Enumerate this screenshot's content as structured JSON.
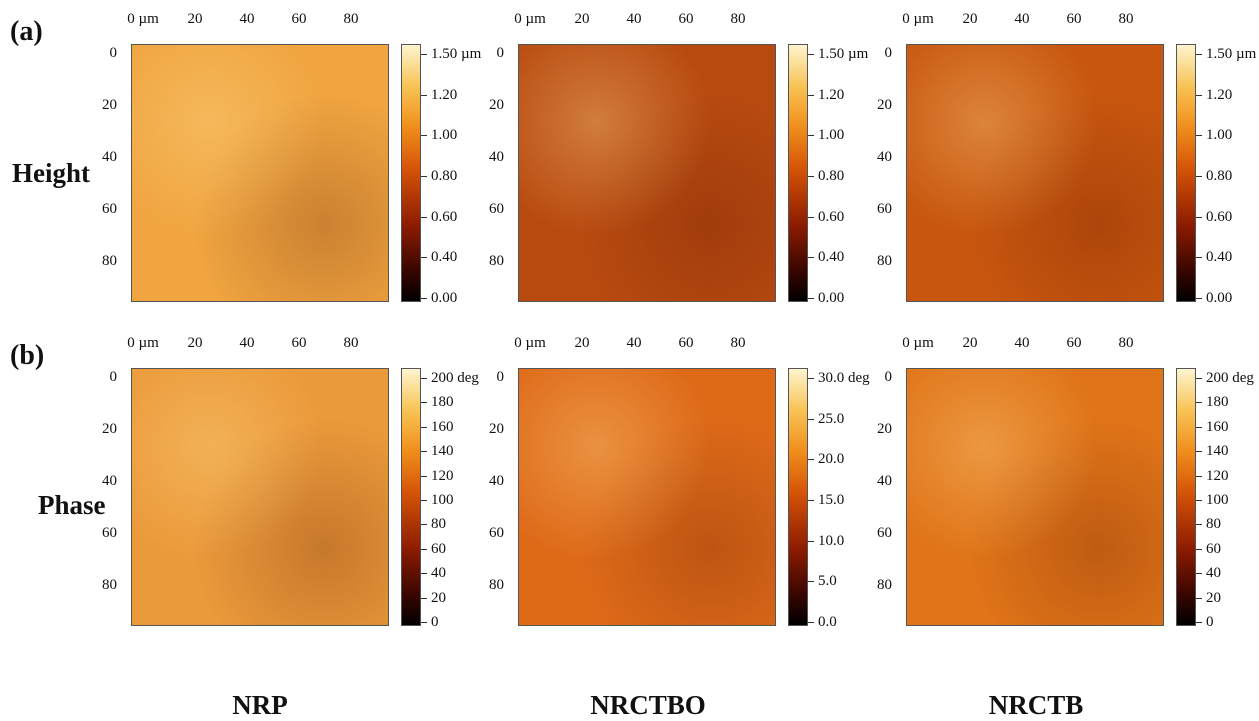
{
  "row_labels": [
    {
      "tag": "(a)",
      "name": "Height"
    },
    {
      "tag": "(b)",
      "name": "Phase"
    }
  ],
  "x_ticks": [
    "0 µm",
    "20",
    "40",
    "60",
    "80"
  ],
  "y_ticks": [
    "0",
    "20",
    "40",
    "60",
    "80"
  ],
  "samples": [
    "NRP",
    "NRCTBO",
    "NRCTB"
  ],
  "colorbars": {
    "height": [
      "1.50 µm",
      "1.20",
      "1.00",
      "0.80",
      "0.60",
      "0.40",
      "0.00"
    ],
    "phase_nrp": [
      "200 deg",
      "180",
      "160",
      "140",
      "120",
      "100",
      "80",
      "60",
      "40",
      "20",
      "0"
    ],
    "phase_nrctbo": [
      "30.0 deg",
      "25.0",
      "20.0",
      "15.0",
      "10.0",
      "5.0",
      "0.0"
    ],
    "phase_nrctb": [
      "200 deg",
      "180",
      "160",
      "140",
      "120",
      "100",
      "80",
      "60",
      "40",
      "20",
      "0"
    ]
  },
  "colors": {
    "nrp_height": "#f0a540",
    "nrctbo_height": "#b84a10",
    "nrctb_height": "#c8560e",
    "nrp_phase": "#eb9a3a",
    "nrctbo_phase": "#de6a18",
    "nrctb_phase": "#e07418"
  }
}
